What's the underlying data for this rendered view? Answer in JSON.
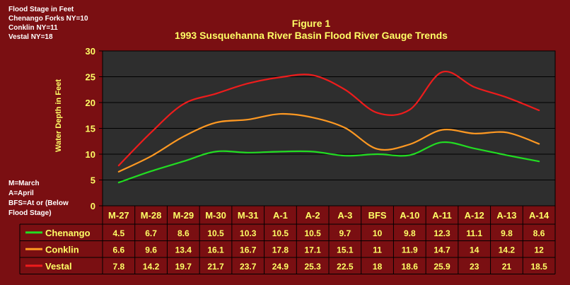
{
  "notes_top": [
    "Flood Stage in Feet",
    "Chenango Forks NY=10",
    "Conklin NY=11",
    "Vestal NY=18"
  ],
  "notes_bottom": [
    "M=March",
    "A=April",
    "BFS=At or (Below",
    "Flood Stage)"
  ],
  "colors": {
    "background": "#7a0f12",
    "plot_area": "#2e2e2e",
    "text": "#ffff66",
    "grid": "#000000"
  },
  "chart_data": {
    "type": "line",
    "title": "Figure 1",
    "subtitle": "1993 Susquehanna River Basin Flood River Gauge Trends",
    "xlabel": "",
    "ylabel": "Water Depth in Feet",
    "ylim": [
      0,
      30
    ],
    "yticks": [
      0,
      5,
      10,
      15,
      20,
      25,
      30
    ],
    "grid": true,
    "legend": "data-table",
    "categories": [
      "M-27",
      "M-28",
      "M-29",
      "M-30",
      "M-31",
      "A-1",
      "A-2",
      "A-3",
      "BFS",
      "A-10",
      "A-11",
      "A-12",
      "A-13",
      "A-14"
    ],
    "series": [
      {
        "name": "Chenango",
        "color": "#22dd22",
        "values": [
          4.5,
          6.7,
          8.6,
          10.5,
          10.3,
          10.5,
          10.5,
          9.7,
          10,
          9.8,
          12.3,
          11.1,
          9.8,
          8.6
        ]
      },
      {
        "name": "Conklin",
        "color": "#ff9922",
        "values": [
          6.6,
          9.6,
          13.4,
          16.1,
          16.7,
          17.8,
          17.1,
          15.1,
          11,
          11.9,
          14.7,
          14,
          14.2,
          12
        ]
      },
      {
        "name": "Vestal",
        "color": "#ee1c1c",
        "values": [
          7.8,
          14.2,
          19.7,
          21.7,
          23.7,
          24.9,
          25.3,
          22.5,
          18,
          18.6,
          25.9,
          23,
          21,
          18.5
        ]
      }
    ]
  }
}
